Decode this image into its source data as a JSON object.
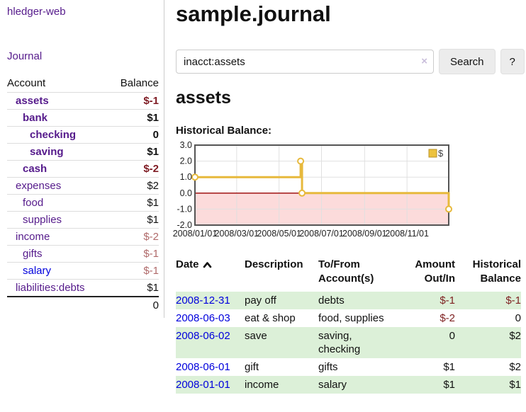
{
  "app": {
    "title": "hledger-web"
  },
  "colors": {
    "link_purple": "#551a8b",
    "link_blue": "#0000dd",
    "negative_red": "#7f1c24",
    "negative_muted": "#b06a6a",
    "row_green": "#dcf0d8",
    "chart_gold": "#e7b93c",
    "chart_negative_region": "#fcdbdb",
    "chart_zero_line": "#990000"
  },
  "sidebar": {
    "nav": {
      "journal_label": "Journal"
    },
    "table_headers": {
      "account": "Account",
      "balance": "Balance"
    },
    "accounts": [
      {
        "name": "assets",
        "balance": "$-1"
      },
      {
        "name": "bank",
        "balance": "$1"
      },
      {
        "name": "checking",
        "balance": "0"
      },
      {
        "name": "saving",
        "balance": "$1"
      },
      {
        "name": "cash",
        "balance": "$-2"
      },
      {
        "name": "expenses",
        "balance": "$2"
      },
      {
        "name": "food",
        "balance": "$1"
      },
      {
        "name": "supplies",
        "balance": "$1"
      },
      {
        "name": "income",
        "balance": "$-2"
      },
      {
        "name": "gifts",
        "balance": "$-1"
      },
      {
        "name": "salary",
        "balance": "$-1"
      },
      {
        "name": "liabilities:debts",
        "balance": "$1"
      }
    ],
    "total": "0"
  },
  "main": {
    "page_title": "sample.journal",
    "search": {
      "value": "inacct:assets",
      "clear_icon": "×",
      "button_label": "Search",
      "help_label": "?"
    },
    "account_heading": "assets",
    "chart_title": "Historical Balance:"
  },
  "chart_data": {
    "type": "line",
    "title": "Historical Balance:",
    "legend": {
      "label": "$",
      "position": "top-right"
    },
    "series": [
      {
        "name": "$",
        "step": true,
        "points": [
          [
            "2008-01-01",
            1
          ],
          [
            "2008-06-01",
            2
          ],
          [
            "2008-06-03",
            0
          ],
          [
            "2008-12-31",
            -1
          ]
        ]
      }
    ],
    "x_domain": [
      "2008-01-01",
      "2008-12-31"
    ],
    "ylim": [
      -2,
      3
    ],
    "y_ticks": [
      "3.0",
      "2.0",
      "1.0",
      "0.0",
      "-1.0",
      "-2.0"
    ],
    "x_ticks": [
      {
        "date": "2008-01-01",
        "label": "2008/01/01"
      },
      {
        "date": "2008-03-01",
        "label": "2008/03/01"
      },
      {
        "date": "2008-05-01",
        "label": "2008/05/01"
      },
      {
        "date": "2008-07-01",
        "label": "2008/07/01"
      },
      {
        "date": "2008-09-01",
        "label": "2008/09/01"
      },
      {
        "date": "2008-11-01",
        "label": "2008/11/01"
      }
    ],
    "grid": true,
    "negative_region_shaded": true
  },
  "transactions": {
    "headers": {
      "date": "Date",
      "description": "Description",
      "accounts": "To/From Account(s)",
      "amount": "Amount Out/In",
      "balance": "Historical Balance"
    },
    "rows": [
      {
        "date": "2008-12-31",
        "description": "pay off",
        "accounts": "debts",
        "amount": "$-1",
        "balance": "$-1"
      },
      {
        "date": "2008-06-03",
        "description": "eat & shop",
        "accounts": "food, supplies",
        "amount": "$-2",
        "balance": "0"
      },
      {
        "date": "2008-06-02",
        "description": "save",
        "accounts": "saving, checking",
        "amount": "0",
        "balance": "$2"
      },
      {
        "date": "2008-06-01",
        "description": "gift",
        "accounts": "gifts",
        "amount": "$1",
        "balance": "$2"
      },
      {
        "date": "2008-01-01",
        "description": "income",
        "accounts": "salary",
        "amount": "$1",
        "balance": "$1"
      }
    ]
  }
}
